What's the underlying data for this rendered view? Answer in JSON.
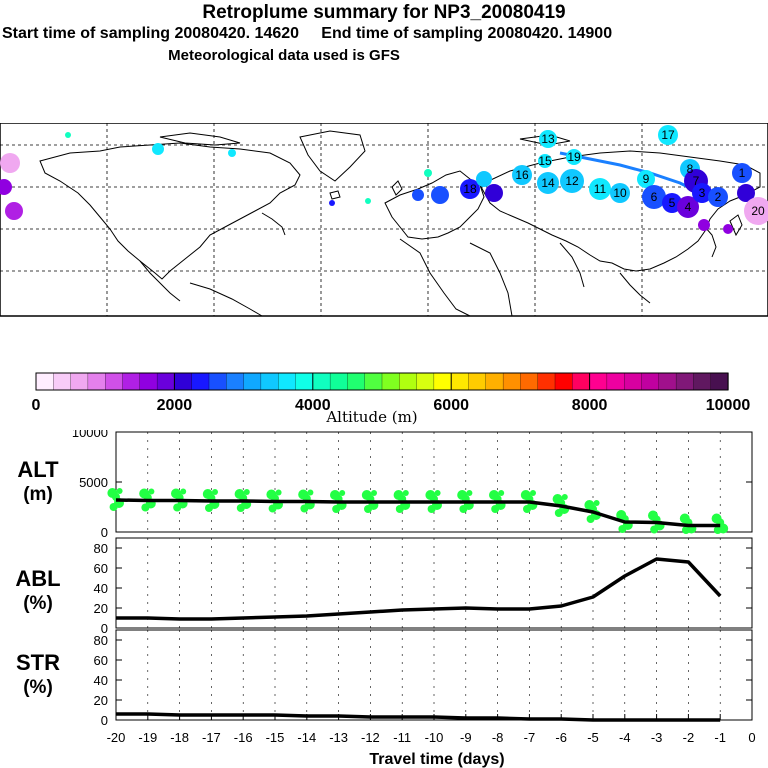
{
  "header": {
    "title": "Retroplume summary for NP3_20080419",
    "start_label": "Start time of sampling 20080420. 14620",
    "end_label": "End time of sampling 20080420. 14900",
    "met_label": "Meteorological data used is GFS"
  },
  "colorbar": {
    "xlabel": "Altitude (m)",
    "tick_labels": [
      "0",
      "2000",
      "4000",
      "6000",
      "8000",
      "10000"
    ],
    "colors": [
      "#ffeeff",
      "#f8ccf8",
      "#f0a8f0",
      "#e480ec",
      "#d050e8",
      "#b020e4",
      "#9000e0",
      "#6a00dc",
      "#3000d8",
      "#1818ff",
      "#1850ff",
      "#1a80ff",
      "#10a8ff",
      "#10c8ff",
      "#10e8ff",
      "#10ffe8",
      "#10ffc0",
      "#10ff98",
      "#20ff70",
      "#50ff40",
      "#80ff20",
      "#b0ff10",
      "#d8ff10",
      "#ffff00",
      "#ffe800",
      "#ffcc00",
      "#ffb000",
      "#ff9000",
      "#ff6a00",
      "#ff3000",
      "#ff0000",
      "#ff0060",
      "#ff0090",
      "#ee00a0",
      "#d800a0",
      "#c000a0",
      "#a0108c",
      "#801878",
      "#601860",
      "#481050"
    ]
  },
  "map": {
    "plume_labels": [
      "13",
      "17",
      "19",
      "15",
      "16",
      "14",
      "12",
      "11",
      "10",
      "9",
      "8",
      "7",
      "6",
      "5",
      "4",
      "3",
      "2",
      "1",
      "20",
      "18"
    ]
  },
  "chart_data": [
    {
      "type": "line",
      "panel_label": "ALT",
      "unit_label": "(m)",
      "x": [
        -20,
        -19,
        -18,
        -17,
        -16,
        -15,
        -14,
        -13,
        -12,
        -11,
        -10,
        -9,
        -8,
        -7,
        -6,
        -5,
        -4,
        -3,
        -2,
        -1
      ],
      "series": [
        {
          "name": "median altitude",
          "values": [
            3200,
            3150,
            3150,
            3100,
            3100,
            3050,
            3050,
            3000,
            3000,
            3000,
            3000,
            3000,
            3000,
            3000,
            2600,
            2000,
            1000,
            950,
            650,
            650
          ]
        }
      ],
      "xlim": [
        -20,
        0
      ],
      "ylim": [
        0,
        10000
      ],
      "ytick_labels": [
        "0",
        "5000",
        "10000"
      ]
    },
    {
      "type": "line",
      "panel_label": "ABL",
      "unit_label": "(%)",
      "x": [
        -20,
        -19,
        -18,
        -17,
        -16,
        -15,
        -14,
        -13,
        -12,
        -11,
        -10,
        -9,
        -8,
        -7,
        -6,
        -5,
        -4,
        -3,
        -2,
        -1
      ],
      "series": [
        {
          "name": "ABL fraction",
          "values": [
            10,
            10,
            9,
            9,
            10,
            11,
            12,
            14,
            16,
            18,
            19,
            20,
            19,
            19,
            22,
            31,
            52,
            69,
            66,
            32
          ]
        }
      ],
      "xlim": [
        -20,
        0
      ],
      "ylim": [
        0,
        90
      ],
      "ytick_labels": [
        "0",
        "20",
        "40",
        "60",
        "80"
      ]
    },
    {
      "type": "line",
      "panel_label": "STR",
      "unit_label": "(%)",
      "x": [
        -20,
        -19,
        -18,
        -17,
        -16,
        -15,
        -14,
        -13,
        -12,
        -11,
        -10,
        -9,
        -8,
        -7,
        -6,
        -5,
        -4,
        -3,
        -2,
        -1
      ],
      "series": [
        {
          "name": "stratospheric fraction",
          "values": [
            6,
            6,
            5,
            5,
            5,
            5,
            4,
            4,
            3,
            3,
            3,
            2,
            2,
            1,
            1,
            0,
            0,
            0,
            0,
            0
          ]
        }
      ],
      "xlim": [
        -20,
        0
      ],
      "ylim": [
        0,
        90
      ],
      "ytick_labels": [
        "0",
        "20",
        "40",
        "60",
        "80"
      ],
      "xlabel": "Travel time (days)",
      "xtick_labels": [
        "-20",
        "-19",
        "-18",
        "-17",
        "-16",
        "-15",
        "-14",
        "-13",
        "-12",
        "-11",
        "-10",
        "-9",
        "-8",
        "-7",
        "-6",
        "-5",
        "-4",
        "-3",
        "-2",
        "-1",
        "0"
      ]
    }
  ]
}
